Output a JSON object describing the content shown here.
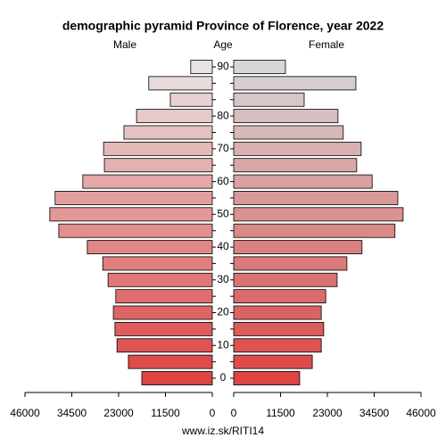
{
  "chart_data": {
    "type": "pyramid",
    "title": "demographic pyramid Province of Florence, year 2022",
    "left_label": "Male",
    "center_label": "Age",
    "right_label": "Female",
    "footer": "www.iz.sk/RITI14",
    "categories": [
      "0",
      null,
      "10",
      null,
      "20",
      null,
      "30",
      null,
      "40",
      null,
      "50",
      null,
      "60",
      null,
      "70",
      null,
      "80",
      null,
      null,
      "90"
    ],
    "series": [
      {
        "name": "Male",
        "color_bottom": "#dd4444",
        "color_top": "#e8e2e2",
        "values": [
          17300,
          20600,
          23400,
          23900,
          24300,
          23700,
          25600,
          26900,
          30700,
          37700,
          39900,
          38600,
          31800,
          26500,
          26700,
          21700,
          18600,
          10300,
          15600,
          5300
        ]
      },
      {
        "name": "Female",
        "color_bottom": "#dd4444",
        "color_top": "#d6d6d6",
        "values": [
          16200,
          19300,
          21500,
          22100,
          21500,
          22600,
          25400,
          27800,
          31500,
          39600,
          41600,
          40300,
          34000,
          30200,
          31300,
          26900,
          25600,
          17300,
          30000,
          12700
        ]
      }
    ],
    "xlim": [
      0,
      46000
    ],
    "xticks": [
      0,
      11500,
      23000,
      34500,
      46000
    ]
  }
}
